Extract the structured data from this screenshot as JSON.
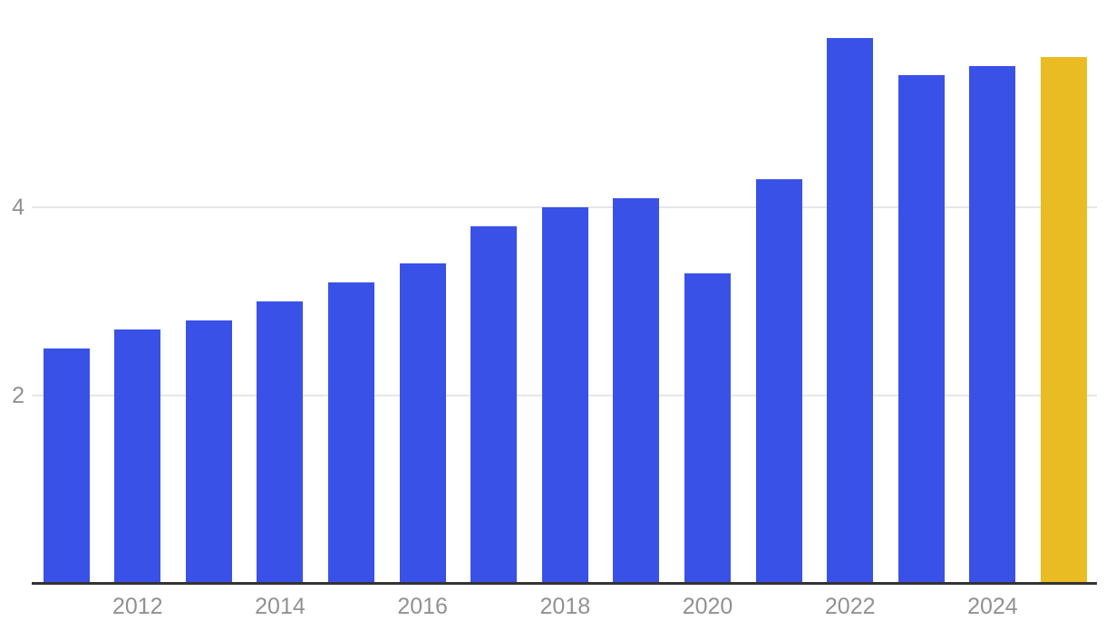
{
  "chart_data": {
    "type": "bar",
    "title": "",
    "categories": [
      "2011",
      "2012",
      "2013",
      "2014",
      "2015",
      "2016",
      "2017",
      "2018",
      "2019",
      "2020",
      "2021",
      "2022",
      "2023",
      "2024",
      "2025"
    ],
    "values": [
      2.5,
      2.7,
      2.8,
      3.0,
      3.2,
      3.4,
      3.8,
      4.0,
      4.1,
      3.3,
      4.3,
      5.8,
      5.4,
      5.5,
      5.6
    ],
    "highlight_category": "2025",
    "highlight_index": 14,
    "xlabel": "",
    "ylabel": "",
    "ylim": [
      0,
      6.2
    ],
    "y_ticks": [
      {
        "value": 2,
        "label": "2"
      },
      {
        "value": 4,
        "label": "4"
      }
    ],
    "x_ticks": [
      {
        "index": 1,
        "label": "2012"
      },
      {
        "index": 3,
        "label": "2014"
      },
      {
        "index": 5,
        "label": "2016"
      },
      {
        "index": 7,
        "label": "2018"
      },
      {
        "index": 9,
        "label": "2020"
      },
      {
        "index": 11,
        "label": "2022"
      },
      {
        "index": 13,
        "label": "2024"
      }
    ],
    "grid": "horizontal-only",
    "legend": "none",
    "colors": {
      "bar": "#3A51E8",
      "highlight_bar": "#EABC23",
      "axis_line": "#333333",
      "gridline": "#E6E6E6",
      "tick_label": "#919191",
      "background": "#FFFFFF"
    }
  }
}
